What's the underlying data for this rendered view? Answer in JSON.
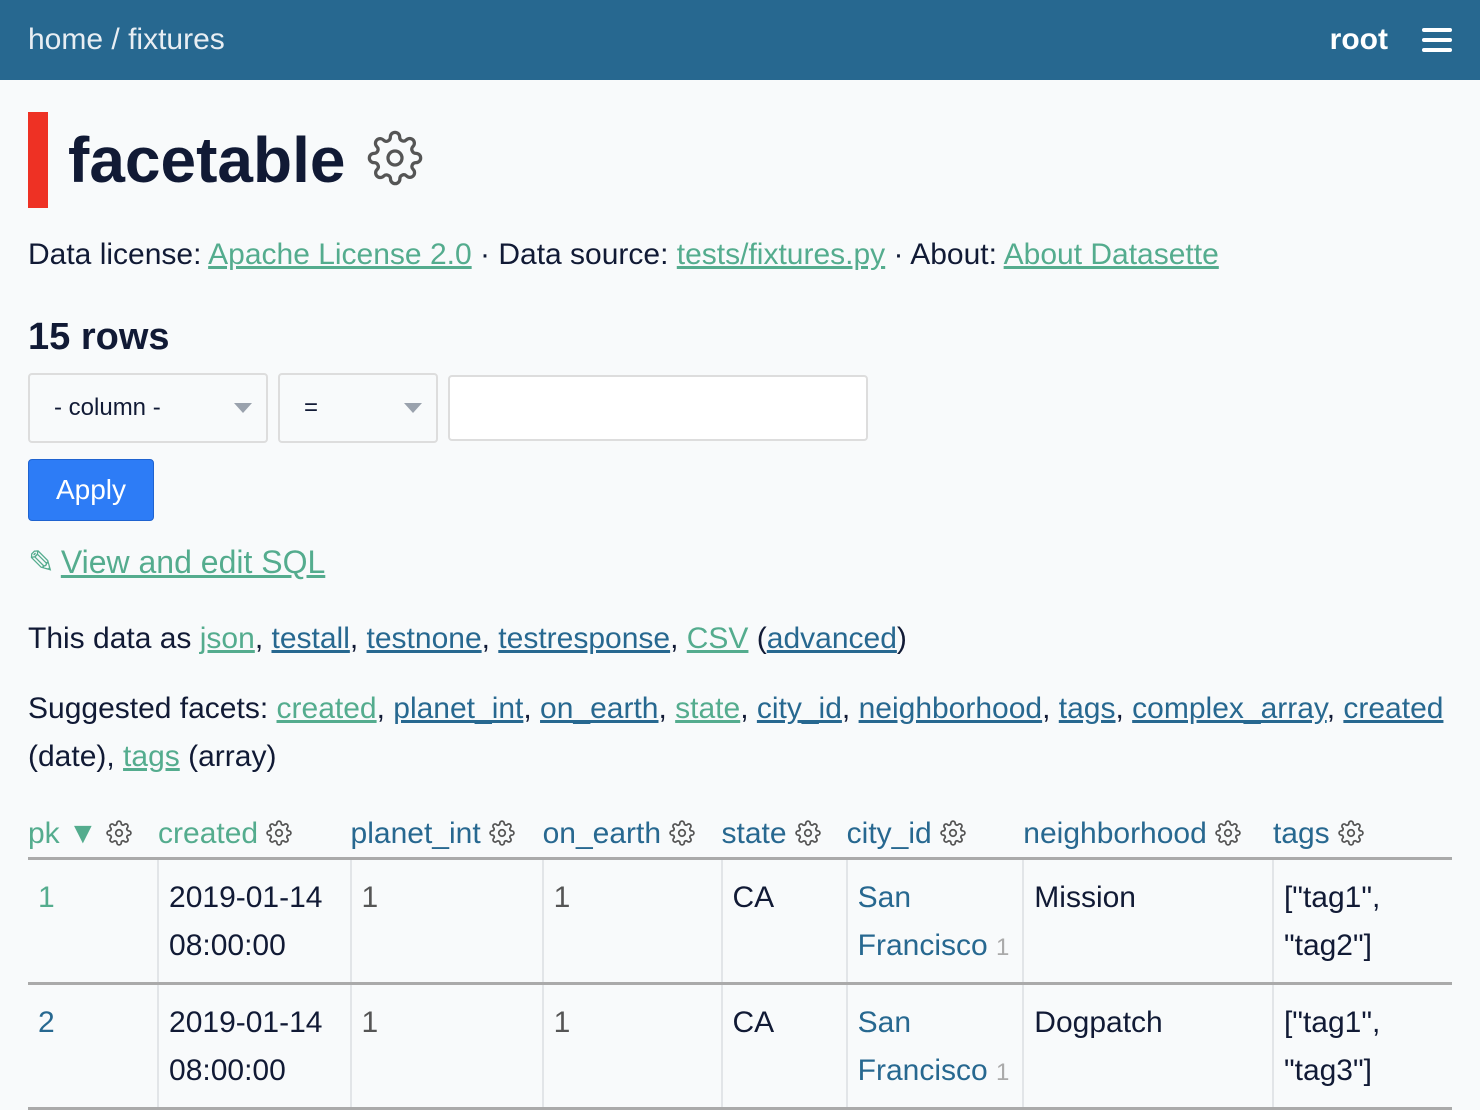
{
  "header": {
    "breadcrumb": [
      "home",
      "fixtures"
    ],
    "separator": "/",
    "user": "root"
  },
  "title": "facetable",
  "meta": {
    "license_label": "Data license:",
    "license": "Apache License 2.0",
    "source_label": "Data source:",
    "source": "tests/fixtures.py",
    "about_label": "About:",
    "about": "About Datasette",
    "sep": "·"
  },
  "row_count": "15 rows",
  "filter": {
    "column": "- column -",
    "op": "=",
    "value": "",
    "apply": "Apply"
  },
  "sql_link": "View and edit SQL",
  "export": {
    "prefix": "This data as",
    "formats": [
      "json",
      "testall",
      "testnone",
      "testresponse",
      "CSV"
    ],
    "advanced": "advanced"
  },
  "facets": {
    "prefix": "Suggested facets:",
    "items": [
      "created",
      "planet_int",
      "on_earth",
      "state",
      "city_id",
      "neighborhood",
      "tags",
      "complex_array"
    ],
    "date": "created",
    "date_suffix": "(date)",
    "array": "tags",
    "array_suffix": "(array)"
  },
  "table": {
    "columns": [
      "pk",
      "created",
      "planet_int",
      "on_earth",
      "state",
      "city_id",
      "neighborhood",
      "tags"
    ],
    "sort_indicator": "▼",
    "rows": [
      {
        "pk": "1",
        "created": "2019-01-14 08:00:00",
        "planet_int": "1",
        "on_earth": "1",
        "state": "CA",
        "city": "San Francisco",
        "city_id": "1",
        "neighborhood": "Mission",
        "tags": "[\"tag1\", \"tag2\"]"
      },
      {
        "pk": "2",
        "created": "2019-01-14 08:00:00",
        "planet_int": "1",
        "on_earth": "1",
        "state": "CA",
        "city": "San Francisco",
        "city_id": "1",
        "neighborhood": "Dogpatch",
        "tags": "[\"tag1\", \"tag3\"]"
      }
    ]
  },
  "colors": {
    "header": "#276890",
    "link": "#276890",
    "visited_link": "#54ac8e",
    "accent_bar": "#ee3124",
    "apply": "#2d7cf6"
  }
}
